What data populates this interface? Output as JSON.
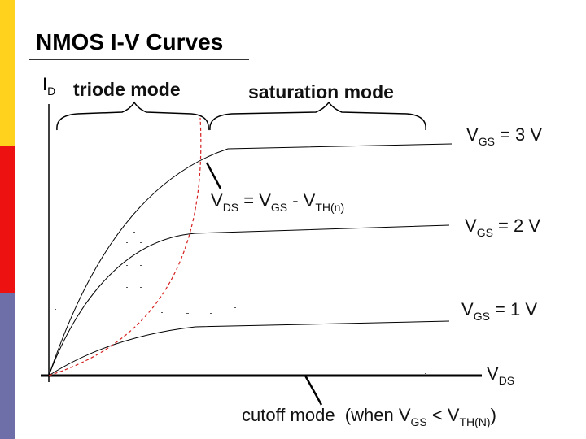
{
  "page_title": "NMOS I-V Curves",
  "axes": {
    "y_label_main": "I",
    "y_label_sub": "D",
    "x_label_main": "V",
    "x_label_sub": "DS"
  },
  "regions": {
    "triode": "triode mode",
    "saturation": "saturation mode"
  },
  "curve_labels": [
    {
      "main": "V",
      "sub": "GS",
      "rest": " = 3 V"
    },
    {
      "main": "V",
      "sub": "GS",
      "rest": " = 2 V"
    },
    {
      "main": "V",
      "sub": "GS",
      "rest": " = 1 V"
    }
  ],
  "boundary_label": {
    "p1": "V",
    "s1": "DS",
    "p2": " = V",
    "s2": "GS",
    "p3": " - V",
    "s3": "TH(n)"
  },
  "cutoff_label": {
    "p1": "cutoff mode",
    "p2": "  (when V",
    "s1": "GS",
    "p3": " < V",
    "s2": "TH(N)",
    "p4": ")"
  },
  "colors": {
    "boundary": "#d62020",
    "curves": "#000000",
    "bar_top": "#ffd21e",
    "bar_middle": "#ee1111",
    "bar_bottom": "#6e6fa8"
  }
}
